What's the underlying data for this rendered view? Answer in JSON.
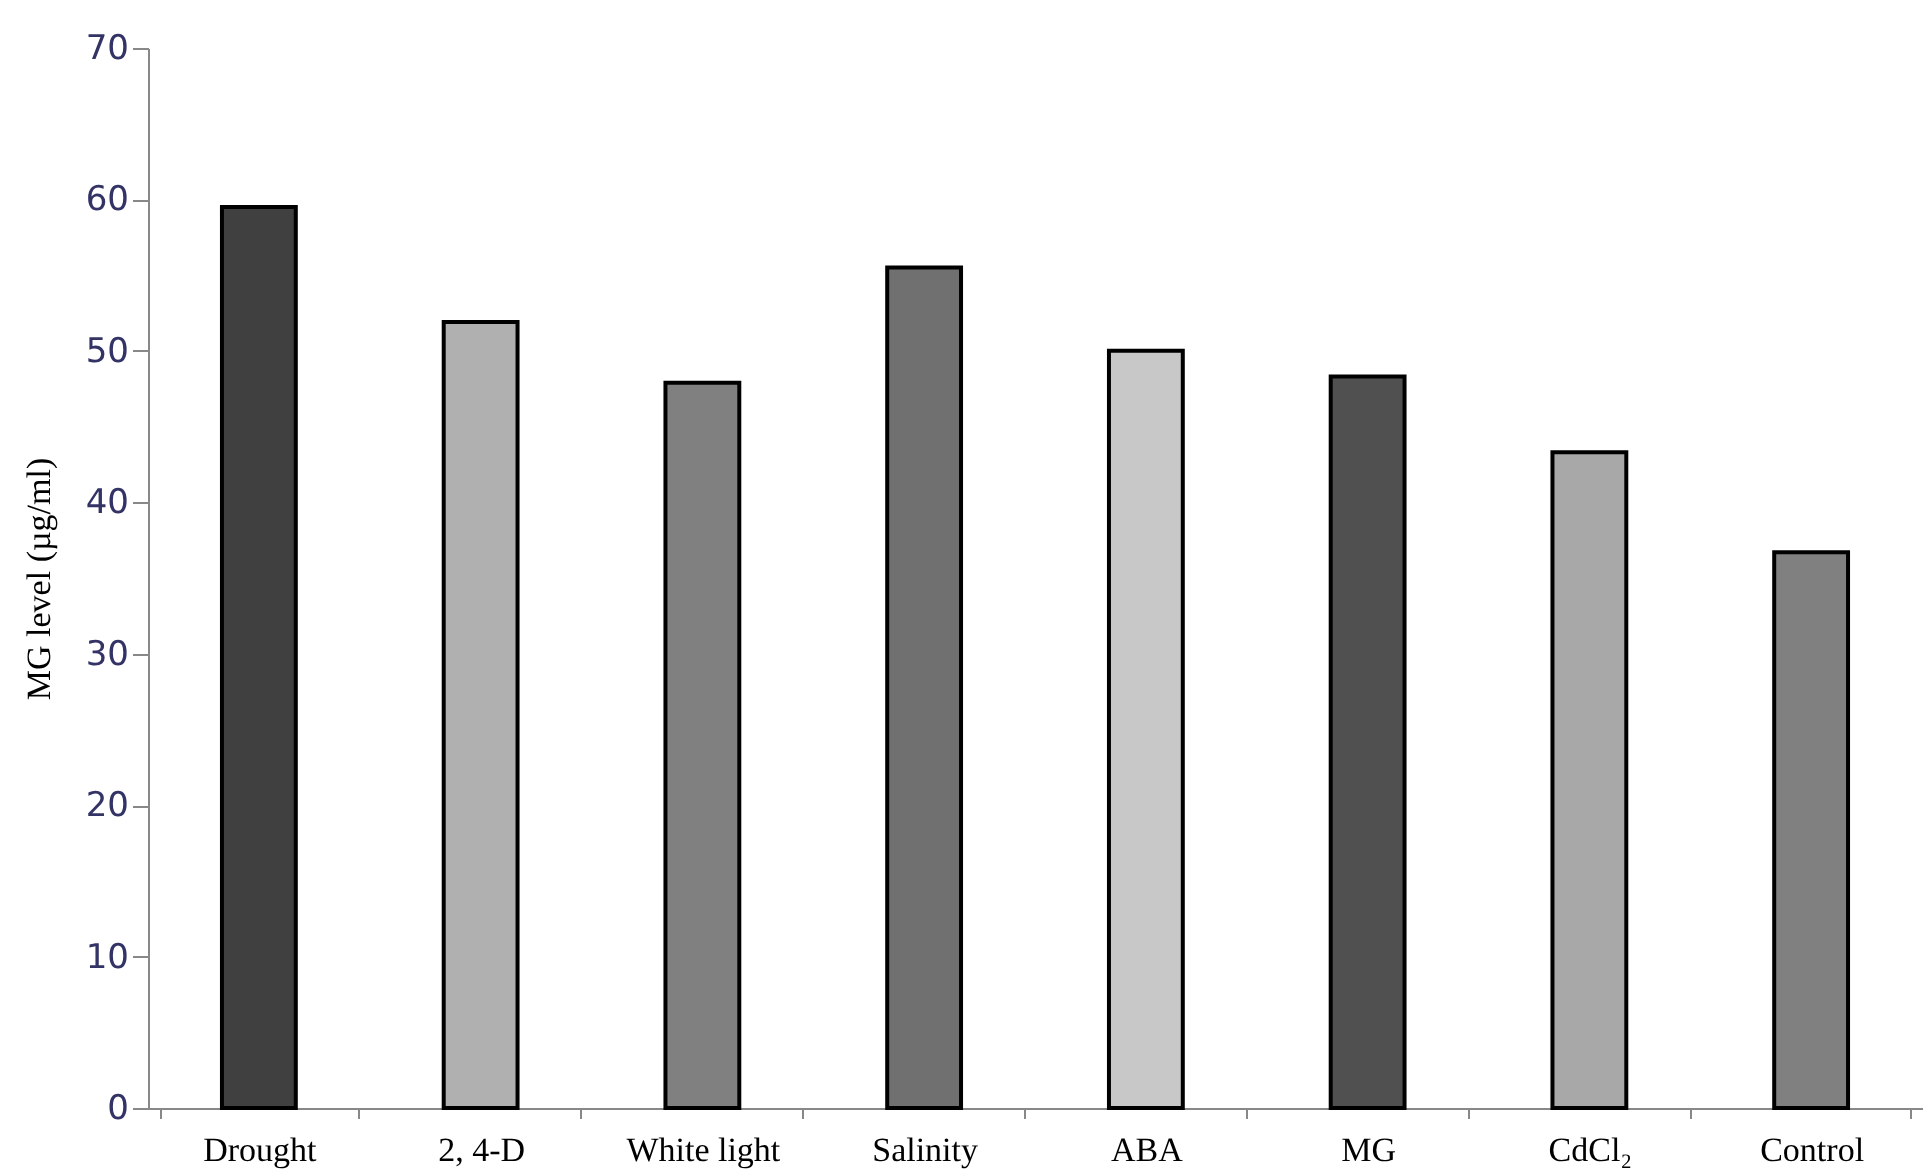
{
  "chart_data": {
    "type": "bar",
    "ylabel": "MG level (µg/ml)",
    "categories": [
      "Drought",
      "2, 4-D",
      "White light",
      "Salinity",
      "ABA",
      "MG",
      "CdCl₂",
      "Control"
    ],
    "values": [
      59.5,
      51.9,
      47.9,
      55.5,
      50.0,
      48.3,
      43.3,
      36.7
    ],
    "colors": [
      "#404040",
      "#b0b0b0",
      "#808080",
      "#707070",
      "#c8c8c8",
      "#505050",
      "#a8a8a8",
      "#808080"
    ],
    "ylim": [
      0,
      70
    ],
    "yticks": [
      0,
      10,
      20,
      30,
      40,
      50,
      60,
      70
    ],
    "grid": false
  }
}
